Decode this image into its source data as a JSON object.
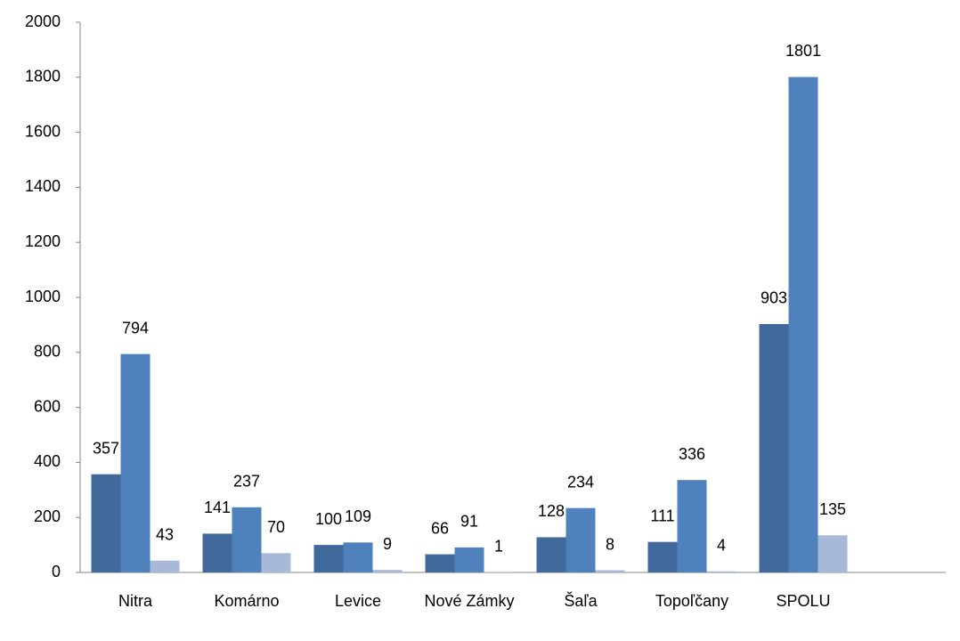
{
  "chart_data": {
    "type": "bar",
    "categories": [
      "Nitra",
      "Komárno",
      "Levice",
      "Nové Zámky",
      "Šaľa",
      "Topoľčany",
      "SPOLU"
    ],
    "series": [
      {
        "color": "#41699c",
        "values": [
          357,
          141,
          100,
          66,
          128,
          111,
          903
        ]
      },
      {
        "color": "#4f81bd",
        "values": [
          794,
          237,
          109,
          91,
          234,
          336,
          1801
        ]
      },
      {
        "color": "#a8b9d8",
        "values": [
          43,
          70,
          9,
          1,
          8,
          4,
          135
        ]
      }
    ],
    "ylim": [
      0,
      2000
    ],
    "yticks": [
      0,
      200,
      400,
      600,
      800,
      1000,
      1200,
      1400,
      1600,
      1800,
      2000
    ],
    "grid": false
  }
}
